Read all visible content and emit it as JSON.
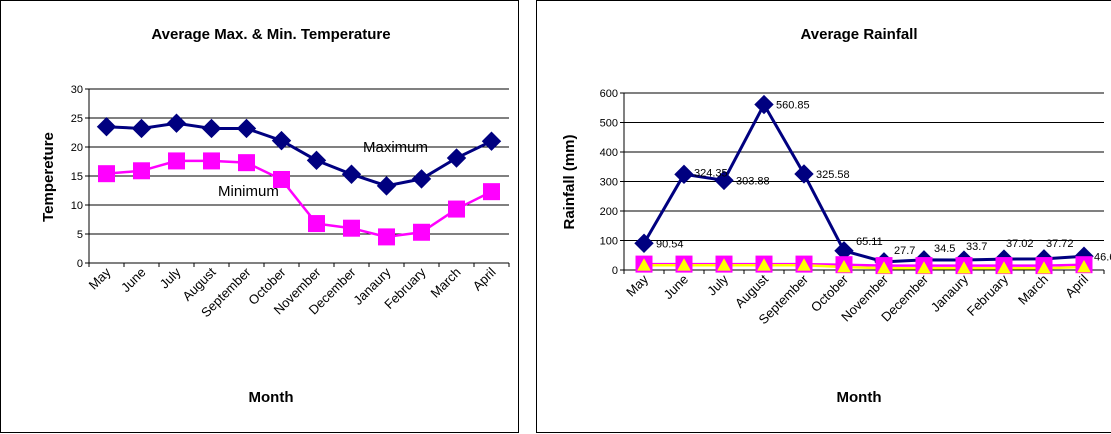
{
  "chart_data": [
    {
      "type": "line",
      "title": "Average Max. & Min. Temperature",
      "xlabel": "Month",
      "ylabel": "Tempereture",
      "categories": [
        "May",
        "June",
        "July",
        "August",
        "September",
        "October",
        "November",
        "December",
        "Janaury",
        "February",
        "March",
        "April"
      ],
      "ylim": [
        0,
        30
      ],
      "yticks": [
        0,
        5,
        10,
        15,
        20,
        25,
        30
      ],
      "grid": true,
      "series": [
        {
          "name": "Maximum",
          "color": "#000080",
          "marker": "diamond",
          "values": [
            23.5,
            23.2,
            24.1,
            23.2,
            23.2,
            21.1,
            17.7,
            15.3,
            13.3,
            14.5,
            18.1,
            21.0
          ]
        },
        {
          "name": "Minimum",
          "color": "#ff00ff",
          "marker": "square",
          "values": [
            15.4,
            15.9,
            17.6,
            17.6,
            17.3,
            14.4,
            6.8,
            6.0,
            4.5,
            5.3,
            9.3,
            12.3
          ]
        }
      ]
    },
    {
      "type": "line",
      "title": "Average Rainfall",
      "xlabel": "Month",
      "ylabel": "Rainfall (mm)",
      "categories": [
        "May",
        "June",
        "July",
        "August",
        "September",
        "October",
        "November",
        "December",
        "Janaury",
        "February",
        "March",
        "April"
      ],
      "ylim": [
        0,
        600
      ],
      "yticks": [
        0,
        100,
        200,
        300,
        400,
        500,
        600
      ],
      "grid": true,
      "series": [
        {
          "color": "#000080",
          "marker": "diamond",
          "values": [
            90.54,
            324.35,
            303.88,
            560.85,
            325.58,
            65.11,
            27.7,
            34.5,
            33.7,
            37.02,
            37.72,
            46.6
          ],
          "labels": [
            "90.54",
            "324.35",
            "303.88",
            "560.85",
            "325.58",
            "65.11",
            "27.7",
            "34.5",
            "33.7",
            "37.02",
            "37.72",
            "46.6"
          ]
        },
        {
          "color": "#ff00ff",
          "marker": "square",
          "values": [
            20,
            20,
            20,
            20,
            20,
            18,
            15,
            15,
            15,
            15,
            15,
            18
          ]
        },
        {
          "color": "#ffff00",
          "marker": "triangle",
          "values": [
            16,
            16,
            16,
            16,
            16,
            10,
            6,
            6,
            6,
            6,
            6,
            10
          ]
        }
      ]
    }
  ]
}
